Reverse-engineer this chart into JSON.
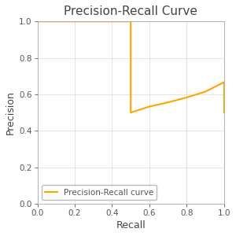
{
  "title": "Precision-Recall Curve",
  "xlabel": "Recall",
  "ylabel": "Precision",
  "xlim": [
    0.0,
    1.0
  ],
  "ylim": [
    0.0,
    1.0
  ],
  "curve_color": "#FFA500",
  "curve_label": "Precision-Recall curve",
  "recall": [
    0.0,
    0.5,
    0.5,
    0.5,
    0.6,
    0.7,
    0.8,
    0.9,
    1.0,
    1.0
  ],
  "precision": [
    1.0,
    1.0,
    0.5,
    0.5,
    0.533,
    0.556,
    0.583,
    0.615,
    0.667,
    0.5
  ],
  "title_fontsize": 11,
  "label_fontsize": 9,
  "tick_fontsize": 7.5,
  "legend_fontsize": 7.5,
  "background_color": "#ffffff",
  "axes_facecolor": "#ffffff",
  "grid_color": "#d0d0d0",
  "grid_linestyle": "-",
  "spine_color": "#aaaaaa",
  "text_color": "#444444",
  "tick_color": "#555555",
  "line_width": 1.5
}
